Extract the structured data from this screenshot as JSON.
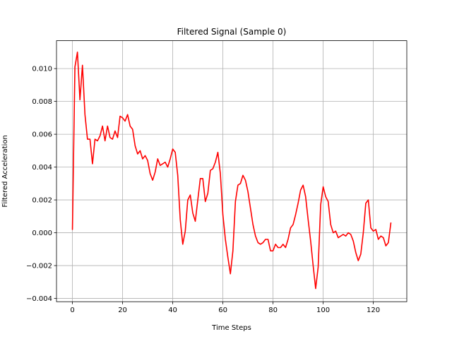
{
  "chart_data": {
    "type": "line",
    "title": "Filtered Signal (Sample 0)",
    "xlabel": "Time Steps",
    "ylabel": "Filtered Acceleration",
    "xlim": [
      -6.35,
      133.35
    ],
    "ylim": [
      -0.0042,
      0.0117
    ],
    "xticks": [
      0,
      20,
      40,
      60,
      80,
      100,
      120
    ],
    "xtick_labels": [
      "0",
      "20",
      "40",
      "60",
      "80",
      "100",
      "120"
    ],
    "yticks": [
      -0.004,
      -0.002,
      0.0,
      0.002,
      0.004,
      0.006,
      0.008,
      0.01
    ],
    "ytick_labels": [
      "−0.004",
      "−0.002",
      "0.000",
      "0.002",
      "0.004",
      "0.006",
      "0.008",
      "0.010"
    ],
    "grid": true,
    "legend": false,
    "series": [
      {
        "color": "#ff0000",
        "x": [
          0,
          1,
          2,
          3,
          4,
          5,
          6,
          7,
          8,
          9,
          10,
          11,
          12,
          13,
          14,
          15,
          16,
          17,
          18,
          19,
          20,
          21,
          22,
          23,
          24,
          25,
          26,
          27,
          28,
          29,
          30,
          31,
          32,
          33,
          34,
          35,
          36,
          37,
          38,
          39,
          40,
          41,
          42,
          43,
          44,
          45,
          46,
          47,
          48,
          49,
          50,
          51,
          52,
          53,
          54,
          55,
          56,
          57,
          58,
          59,
          60,
          61,
          62,
          63,
          64,
          65,
          66,
          67,
          68,
          69,
          70,
          71,
          72,
          73,
          74,
          75,
          76,
          77,
          78,
          79,
          80,
          81,
          82,
          83,
          84,
          85,
          86,
          87,
          88,
          89,
          90,
          91,
          92,
          93,
          94,
          95,
          96,
          97,
          98,
          99,
          100,
          101,
          102,
          103,
          104,
          105,
          106,
          107,
          108,
          109,
          110,
          111,
          112,
          113,
          114,
          115,
          116,
          117,
          118,
          119,
          120,
          121,
          122,
          123,
          124,
          125,
          126,
          127
        ],
        "y": [
          0.0002,
          0.0101,
          0.011,
          0.0081,
          0.0102,
          0.0072,
          0.0057,
          0.0057,
          0.0042,
          0.0057,
          0.0056,
          0.0059,
          0.0065,
          0.0056,
          0.0065,
          0.0058,
          0.0057,
          0.0062,
          0.0058,
          0.0071,
          0.007,
          0.0068,
          0.0072,
          0.0065,
          0.0063,
          0.0053,
          0.0048,
          0.005,
          0.0045,
          0.0047,
          0.0044,
          0.0036,
          0.0032,
          0.0037,
          0.0045,
          0.0041,
          0.0042,
          0.0043,
          0.004,
          0.0045,
          0.0051,
          0.0049,
          0.0035,
          0.0008,
          -0.0007,
          0.0001,
          0.002,
          0.0023,
          0.0012,
          0.0007,
          0.002,
          0.0033,
          0.0033,
          0.0019,
          0.0024,
          0.0038,
          0.0039,
          0.0043,
          0.0049,
          0.0036,
          0.0011,
          -0.0004,
          -0.0015,
          -0.0025,
          -0.0011,
          0.0019,
          0.0029,
          0.003,
          0.0035,
          0.0032,
          0.0025,
          0.0015,
          0.0005,
          -0.0002,
          -0.0006,
          -0.0007,
          -0.0006,
          -0.0004,
          -0.0004,
          -0.0011,
          -0.0011,
          -0.0007,
          -0.0009,
          -0.0009,
          -0.0007,
          -0.0009,
          -0.0004,
          0.0003,
          0.0005,
          0.0011,
          0.0018,
          0.0026,
          0.0029,
          0.0022,
          0.0008,
          -0.0005,
          -0.002,
          -0.0034,
          -0.0021,
          0.0017,
          0.0028,
          0.0022,
          0.0019,
          0.0005,
          0.0,
          0.0001,
          -0.0003,
          -0.0002,
          -0.0001,
          -0.0002,
          0.0,
          -0.0001,
          -0.0005,
          -0.0012,
          -0.0017,
          -0.0013,
          0.0,
          0.0018,
          0.002,
          0.0003,
          0.0001,
          0.0002,
          -0.0004,
          -0.0002,
          -0.0003,
          -0.0008,
          -0.0006,
          0.0006
        ]
      }
    ]
  }
}
